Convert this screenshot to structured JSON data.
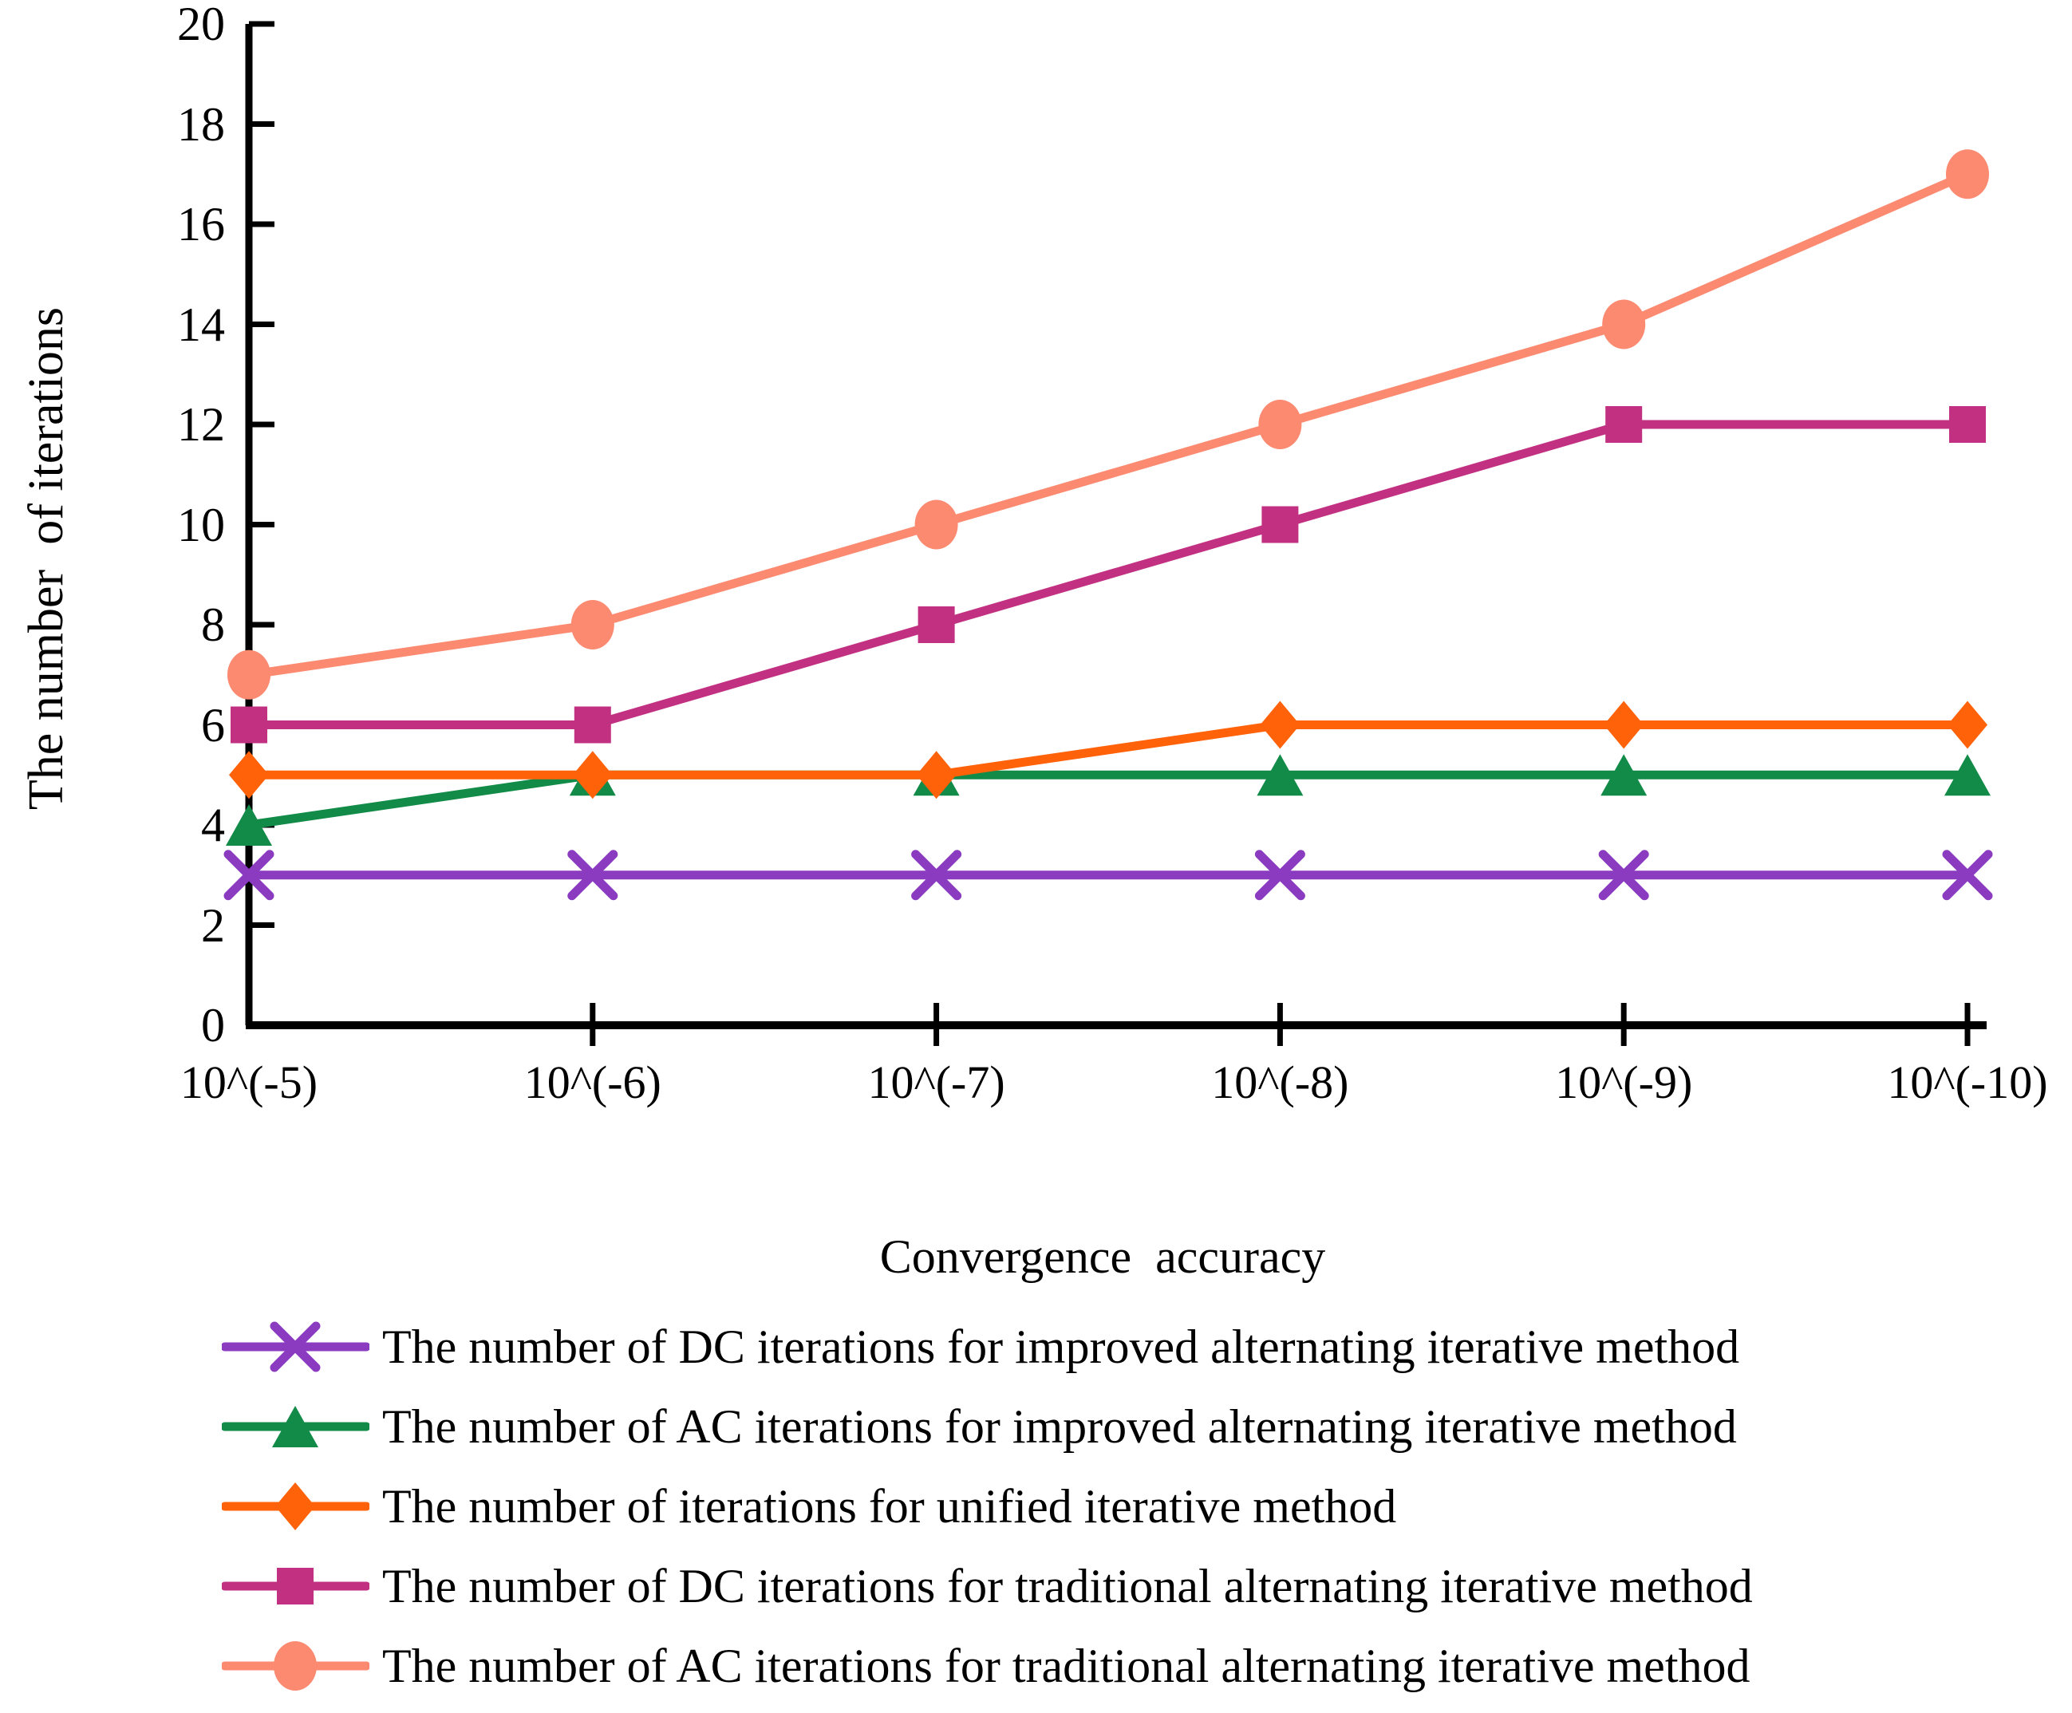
{
  "background": "#ffffff",
  "chart_data": {
    "type": "line",
    "title": "",
    "xlabel": "Convergence  accuracy",
    "ylabel": "The number  of iterations",
    "categories": [
      "10^(-5)",
      "10^(-6)",
      "10^(-7)",
      "10^(-8)",
      "10^(-9)",
      "10^(-10)"
    ],
    "y_tick_labels": [
      "0",
      "2",
      "4",
      "6",
      "8",
      "10",
      "12",
      "14",
      "16",
      "18",
      "20"
    ],
    "ylim": [
      0,
      20
    ],
    "ytick_step": 2,
    "grid": false,
    "legend_position": "bottom-left",
    "axis_color": "#000000",
    "series": [
      {
        "name": "The number of DC iterations for improved alternating iterative method",
        "marker": "x",
        "color": "#8B3BC0",
        "values": [
          3,
          3,
          3,
          3,
          3,
          3
        ]
      },
      {
        "name": "The number of AC iterations for improved alternating iterative method",
        "marker": "triangle",
        "color": "#128B48",
        "values": [
          4,
          5,
          5,
          5,
          5,
          5
        ]
      },
      {
        "name": "The number of iterations for unified iterative method",
        "marker": "diamond",
        "color": "#FF6209",
        "values": [
          5,
          5,
          5,
          6,
          6,
          6
        ]
      },
      {
        "name": "The number of DC iterations for traditional alternating iterative method",
        "marker": "square",
        "color": "#C23181",
        "values": [
          6,
          6,
          8,
          10,
          12,
          12
        ]
      },
      {
        "name": "The number of AC iterations for traditional alternating iterative method",
        "marker": "circle",
        "color": "#FB8A71",
        "values": [
          7,
          8,
          10,
          12,
          14,
          17
        ]
      }
    ]
  }
}
